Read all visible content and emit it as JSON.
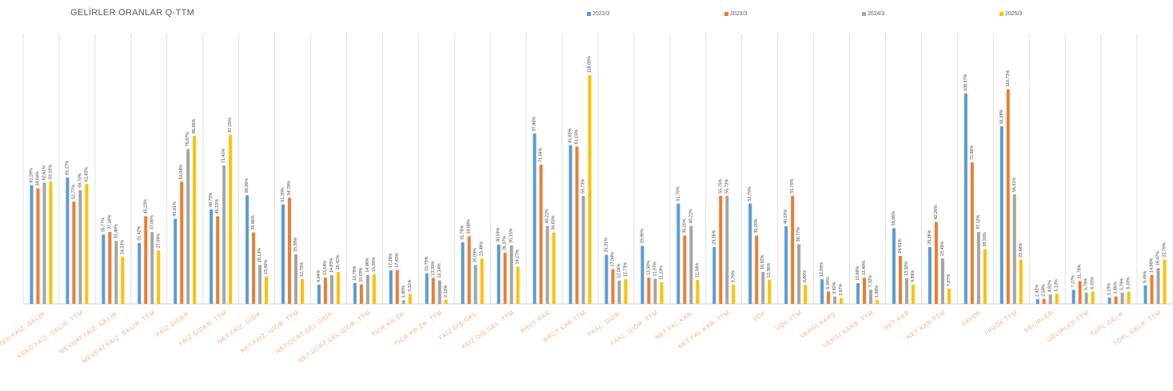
{
  "chart_data": {
    "type": "bar",
    "title": "GELİRLER ORANLAR Q-TTM",
    "xlabel": "",
    "ylabel": "",
    "ylim": [
      0,
      130
    ],
    "grid": "vertical category separators",
    "legend_position": "top",
    "categories": [
      "KRED.FAİZ. GELİR.",
      "KRED.FAİZ. GELİR. TTM",
      "MEVDAT.FAİZ. GELİR.",
      "MEVDAT.FAİZ. GELİR. TTM",
      "FAİZ.GİDER.",
      "FAİZ.GİDER. TTM",
      "NET.FAİZ. GİDR.",
      "NET.FAİZ. GİDR. TTM",
      "NET.ÜCRT.GEL.GİDR.",
      "NET.ÜCRT.GEL.GİDR. TTM",
      "TİCR.KR.ZR.",
      "TİCR.KR.ZR. TTM",
      "FAİZ DIŞ.GEL.",
      "FAİZ DIŞ.GEL. TTM",
      "BRÜT KAR",
      "BRÜT KAR TTM",
      "FAAL. GİDR.",
      "FAAL. GİDR. TTM",
      "NET.FAL.KAR.",
      "NET.FAL.KAR. TTM",
      "VÖK",
      "VÖK TTM",
      "VERGİ.KARŞ.",
      "VERGİ.KARŞ. TTM",
      "NET KAR",
      "NET KAR TTM",
      "FAVÖK",
      "FAVÖK TTM",
      "GELİRLER",
      "GELİRLER TTM",
      "TOPL.GELR.",
      "TOPL.GELR. TTM"
    ],
    "series": [
      {
        "name": "2022/3",
        "color": "#5B9BD5",
        "values": [
          61.28,
          65.17,
          35.77,
          31.42,
          43.91,
          48.7,
          56.06,
          51.3,
          9.94,
          10.78,
          17.29,
          15.75,
          31.78,
          30.53,
          87.86,
          81.83,
          25.31,
          29.96,
          51.75,
          29.36,
          51.75,
          40.03,
          12.69,
          10.66,
          39.06,
          29.36,
          108.57,
          91.58,
          2.42,
          7.27,
          3.19,
          9.49
        ],
        "labels": [
          "61,28%",
          "65,17%",
          "35,77%",
          "31,42%",
          "43,91%",
          "48,70%",
          "56,06%",
          "51,30%",
          "9,94%",
          "10,78%",
          "17,29%",
          "15,75%",
          "31,78%",
          "30,53%",
          "87,86%",
          "81,83%",
          "25,31%",
          "29,96%",
          "51,75%",
          "29,36%",
          "51,75%",
          "40,03%",
          "12,69%",
          "10,66%",
          "39,06%",
          "29,36%",
          "108,57%",
          "91,58%",
          "2,42%",
          "7,27%",
          "3,19%",
          "9,49%"
        ]
      },
      {
        "name": "2023/3",
        "color": "#ED7D31",
        "values": [
          59.64,
          52.77,
          37.16,
          45.23,
          63.04,
          45.22,
          36.86,
          54.78,
          13.54,
          10.03,
          17.43,
          13.39,
          34.88,
          26.37,
          71.84,
          81.15,
          17.94,
          13.5,
          35.2,
          55.75,
          35.2,
          55.75,
          6.39,
          13.49,
          24.81,
          42.26,
          72.96,
          110.73,
          2.59,
          11.78,
          3.86,
          14.89
        ],
        "labels": [
          "59,64%",
          "52,77%",
          "37,16%",
          "45,23%",
          "63,04%",
          "45,22%",
          "36,86%",
          "54,78%",
          "13,54%",
          "10,03%",
          "17,43%",
          "13,39%",
          "34,88%",
          "26,37%",
          "71,84%",
          "81,15%",
          "17,94%",
          "13,50%",
          "35,20%",
          "55,75%",
          "35,20%",
          "55,75%",
          "6,39%",
          "13,49%",
          "24,81%",
          "42,26%",
          "72,96%",
          "110,73%",
          "2,59%",
          "11,78%",
          "3,86%",
          "14,89%"
        ]
      },
      {
        "name": "2024/3",
        "color": "#A5A5A5",
        "values": [
          62.61,
          58.7,
          32.46,
          37.06,
          79.87,
          71.42,
          20.13,
          25.58,
          14.83,
          14.96,
          1.9,
          12.14,
          20.09,
          30.15,
          40.22,
          55.73,
          12.04,
          12.97,
          40.22,
          55.73,
          16.52,
          30.77,
          3.82,
          7.32,
          13.2,
          23.45,
          37.12,
          56.51,
          4.82,
          5.79,
          5.79,
          18.47
        ],
        "labels": [
          "62,61%",
          "58,70%",
          "32,46%",
          "37,06%",
          "79,87%",
          "71,42%",
          "20,13%",
          "25,58%",
          "14,83%",
          "14,96%",
          "1,90%",
          "12,14%",
          "20,09%",
          "30,15%",
          "40,22%",
          "55,73%",
          "12,04%",
          "12,97%",
          "40,22%",
          "55,73%",
          "16,52%",
          "30,77%",
          "3,82%",
          "7,32%",
          "13,20%",
          "23,45%",
          "37,12%",
          "56,51%",
          "4,82%",
          "5,79%",
          "5,79%",
          "18,47%"
        ]
      },
      {
        "name": "2025/3",
        "color": "#FFC000",
        "values": [
          63.1,
          61.83,
          24.23,
          27.59,
          86.65,
          87.25,
          13.95,
          12.75,
          16.41,
          15.2,
          5.11,
          2.13,
          23.48,
          19.17,
          36.83,
          118.0,
          12.73,
          11.23,
          12.34,
          9.76,
          12.36,
          9.8,
          2.97,
          1.99,
          9.89,
          7.87,
          28.2,
          22.68,
          5.13,
          6.33,
          6.33,
          22.79
        ],
        "labels": [
          "63,10%",
          "61,83%",
          "24,23%",
          "27,59%",
          "86,65%",
          "87,25%",
          "13,95%",
          "12,75%",
          "16,41%",
          "15,20%",
          "5,11%",
          "2,13%",
          "23,48%",
          "19,17%",
          "36,83%",
          "118,00%",
          "12,73%",
          "11,23%",
          "12,34%",
          "9,76%",
          "12,36%",
          "9,80%",
          "2,97%",
          "1,99%",
          "9,89%",
          "7,87%",
          "28,20%",
          "22,68%",
          "5,13%",
          "6,33%",
          "6,33%",
          "22,79%"
        ]
      }
    ]
  }
}
